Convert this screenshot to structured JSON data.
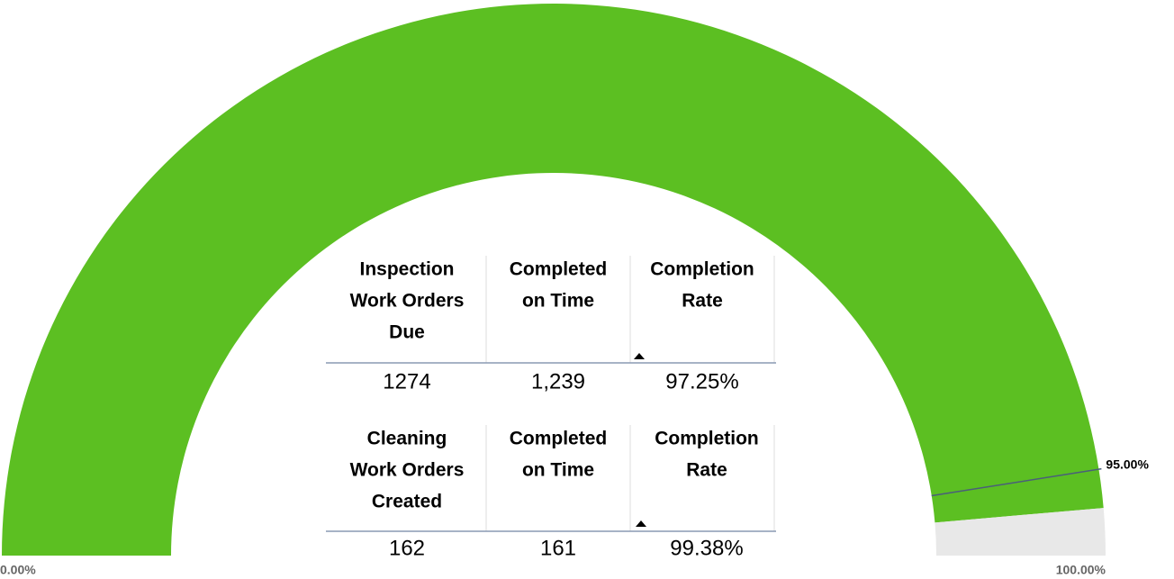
{
  "chart_data": {
    "type": "gauge",
    "value": 97.25,
    "color": "#5cbf22",
    "track_color": "#e8e8e8",
    "min": {
      "value": 0,
      "label": "0.00%"
    },
    "max": {
      "value": 100,
      "label": "100.00%"
    },
    "target": {
      "value": 95,
      "label": "95.00%"
    },
    "target_color": "#4a5f7a"
  },
  "tables": [
    {
      "headers": [
        [
          "Inspection",
          "Work Orders",
          "Due"
        ],
        [
          "Completed",
          "on Time"
        ],
        [
          "Completion",
          "Rate"
        ]
      ],
      "row": [
        "1274",
        "1,239",
        "97.25%"
      ]
    },
    {
      "headers": [
        [
          "Cleaning",
          "Work Orders",
          "Created"
        ],
        [
          "Completed",
          "on Time"
        ],
        [
          "Completion",
          "Rate"
        ]
      ],
      "row": [
        "162",
        "161",
        "99.38%"
      ]
    }
  ]
}
